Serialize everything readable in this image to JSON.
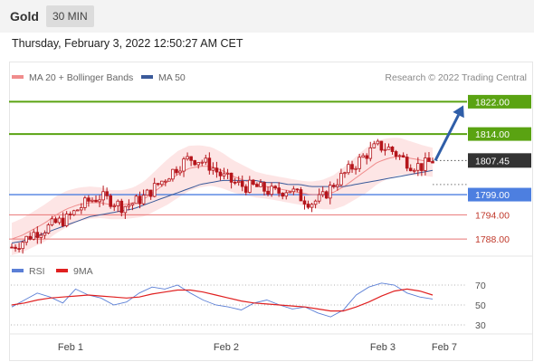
{
  "header": {
    "instrument": "Gold",
    "timeframe": "30 MIN",
    "datetime": "Thursday, February 3, 2022 12:50:27 AM CET"
  },
  "credit": "Research © 2022 Trading Central",
  "colors": {
    "ma20": "#f08c8c",
    "ma50": "#3a5a9a",
    "bands_fill": "#fde0e0",
    "candle": "#b5151b",
    "green_level": "#5aa312",
    "blue_level": "#4d7fe0",
    "red_level": "#e87575",
    "current_label": "#333333",
    "arrow": "#2f5ea8",
    "rsi": "#5b7fd6",
    "rsi_ma": "#e02020"
  },
  "chart_data": [
    {
      "type": "candlestick",
      "legend": [
        {
          "name": "MA 20 + Bollinger Bands",
          "color": "#f08c8c"
        },
        {
          "name": "MA 50",
          "color": "#3a5a9a"
        }
      ],
      "x_ticks": [
        "Feb 1",
        "Feb 2",
        "Feb 3",
        "Feb 7"
      ],
      "ylim": [
        1784,
        1825
      ],
      "current_price": "1807.45",
      "levels": [
        {
          "value": 1822.0,
          "label": "1822.00",
          "kind": "resistance",
          "style": "green"
        },
        {
          "value": 1814.0,
          "label": "1814.00",
          "kind": "resistance",
          "style": "green"
        },
        {
          "value": 1799.0,
          "label": "1799.00",
          "kind": "pivot",
          "style": "blue"
        },
        {
          "value": 1794.0,
          "label": "1794.00",
          "kind": "support",
          "style": "red"
        },
        {
          "value": 1788.0,
          "label": "1788.00",
          "kind": "support",
          "style": "red"
        }
      ],
      "close_path": [
        1786,
        1787.5,
        1789.5,
        1790.5,
        1792,
        1793,
        1795.5,
        1797.5,
        1798.5,
        1797.5,
        1796,
        1797,
        1798.5,
        1801,
        1803.5,
        1806,
        1808,
        1807.5,
        1806,
        1803.5,
        1802,
        1801,
        1801,
        1800,
        1799.5,
        1800.5,
        1798.5,
        1797,
        1798,
        1801.5,
        1804,
        1806.5,
        1809,
        1811,
        1810.5,
        1808.5,
        1806.5,
        1806,
        1807.45
      ],
      "ma20_path": [
        1788,
        1789,
        1790.5,
        1792,
        1794,
        1795.5,
        1796.5,
        1797,
        1797,
        1796.5,
        1796.5,
        1797,
        1798,
        1800,
        1802,
        1804,
        1805.5,
        1806,
        1806,
        1805,
        1803.5,
        1802.5,
        1801.5,
        1801,
        1800.5,
        1800,
        1799.5,
        1799,
        1799,
        1799.5,
        1801,
        1803,
        1805,
        1807,
        1808,
        1808.5,
        1808,
        1807.5,
        1807
      ],
      "ma50_path": [
        1787,
        1787.5,
        1788.5,
        1789.5,
        1790.5,
        1791.5,
        1792.5,
        1793.5,
        1794,
        1794.5,
        1795,
        1795.5,
        1796.5,
        1797.5,
        1798.5,
        1799.5,
        1800.5,
        1801.5,
        1802,
        1802.5,
        1802.5,
        1802.5,
        1802.5,
        1802,
        1802,
        1801.5,
        1801.5,
        1801,
        1801,
        1801,
        1801,
        1801.5,
        1802,
        1802.5,
        1803,
        1803.5,
        1804,
        1804.5,
        1805
      ],
      "band_width": [
        4,
        4.2,
        4.4,
        4.6,
        4.6,
        4.5,
        4.2,
        4,
        3.8,
        3.6,
        3.6,
        3.8,
        4.4,
        5,
        5.6,
        5.8,
        5.6,
        5.2,
        4.8,
        4.4,
        4,
        3.6,
        3.2,
        3,
        3,
        3,
        3,
        3.2,
        3.6,
        4.2,
        4.8,
        5.2,
        5.6,
        5.4,
        5,
        4.6,
        4.2,
        3.8,
        3.6
      ],
      "forecast_arrow": {
        "from": 1807.45,
        "to": 1822.0
      }
    },
    {
      "type": "line",
      "legend": [
        {
          "name": "RSI",
          "color": "#5b7fd6"
        },
        {
          "name": "9MA",
          "color": "#e02020"
        }
      ],
      "y_ticks": [
        "70",
        "50",
        "30"
      ],
      "ylim": [
        20,
        80
      ],
      "series": [
        {
          "name": "RSI",
          "values": [
            48,
            55,
            62,
            58,
            52,
            66,
            60,
            57,
            50,
            53,
            62,
            68,
            66,
            70,
            62,
            55,
            50,
            48,
            45,
            52,
            55,
            50,
            46,
            48,
            42,
            38,
            45,
            60,
            68,
            72,
            70,
            62,
            58,
            56
          ]
        },
        {
          "name": "9MA",
          "values": [
            50,
            52,
            55,
            57,
            58,
            59,
            60,
            59,
            58,
            57,
            58,
            61,
            63,
            65,
            65,
            63,
            60,
            57,
            54,
            52,
            51,
            50,
            49,
            48,
            46,
            44,
            44,
            48,
            53,
            59,
            64,
            66,
            64,
            60
          ]
        }
      ]
    }
  ]
}
